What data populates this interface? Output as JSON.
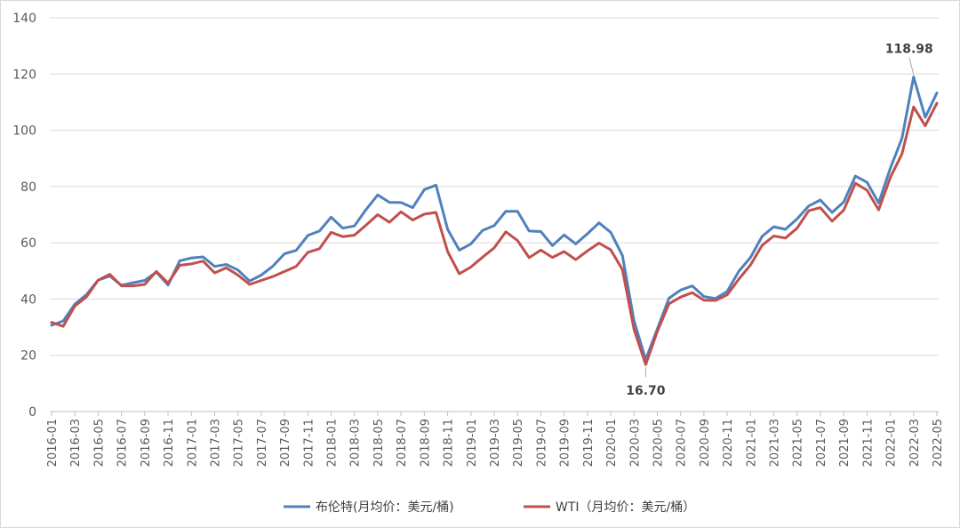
{
  "chart_data": {
    "type": "line",
    "ylim": [
      0,
      140
    ],
    "yticks": [
      0,
      20,
      40,
      60,
      80,
      100,
      120,
      140
    ],
    "grid": "horizontal",
    "legend_placement": "bottom-center",
    "x": [
      "2016-01",
      "2016-02",
      "2016-03",
      "2016-04",
      "2016-05",
      "2016-06",
      "2016-07",
      "2016-08",
      "2016-09",
      "2016-10",
      "2016-11",
      "2016-12",
      "2017-01",
      "2017-02",
      "2017-03",
      "2017-04",
      "2017-05",
      "2017-06",
      "2017-07",
      "2017-08",
      "2017-09",
      "2017-10",
      "2017-11",
      "2017-12",
      "2018-01",
      "2018-02",
      "2018-03",
      "2018-04",
      "2018-05",
      "2018-06",
      "2018-07",
      "2018-08",
      "2018-09",
      "2018-10",
      "2018-11",
      "2018-12",
      "2019-01",
      "2019-02",
      "2019-03",
      "2019-04",
      "2019-05",
      "2019-06",
      "2019-07",
      "2019-08",
      "2019-09",
      "2019-10",
      "2019-11",
      "2019-12",
      "2020-01",
      "2020-02",
      "2020-03",
      "2020-04",
      "2020-05",
      "2020-06",
      "2020-07",
      "2020-08",
      "2020-09",
      "2020-10",
      "2020-11",
      "2020-12",
      "2021-01",
      "2021-02",
      "2021-03",
      "2021-04",
      "2021-05",
      "2021-06",
      "2021-07",
      "2021-08",
      "2021-09",
      "2021-10",
      "2021-11",
      "2021-12",
      "2022-01",
      "2022-02",
      "2022-03",
      "2022-04",
      "2022-05"
    ],
    "xtick_labels": [
      "2016-01",
      "2016-03",
      "2016-05",
      "2016-07",
      "2016-09",
      "2016-11",
      "2017-01",
      "2017-03",
      "2017-05",
      "2017-07",
      "2017-09",
      "2017-11",
      "2018-01",
      "2018-03",
      "2018-05",
      "2018-07",
      "2018-09",
      "2018-11",
      "2019-01",
      "2019-03",
      "2019-05",
      "2019-07",
      "2019-09",
      "2019-11",
      "2020-01",
      "2020-03",
      "2020-05",
      "2020-07",
      "2020-09",
      "2020-11",
      "2021-01",
      "2021-03",
      "2021-05",
      "2021-07",
      "2021-09",
      "2021-11",
      "2022-01",
      "2022-03",
      "2022-05"
    ],
    "series": [
      {
        "name": "布伦特(月均价：美元/桶)",
        "color": "#4f81bd",
        "values": [
          30.7,
          32.2,
          38.2,
          41.6,
          46.7,
          48.2,
          44.9,
          45.8,
          46.6,
          49.6,
          45.0,
          53.6,
          54.6,
          55.0,
          51.6,
          52.3,
          50.3,
          46.4,
          48.5,
          51.7,
          56.1,
          57.3,
          62.6,
          64.2,
          69.1,
          65.2,
          66.0,
          71.8,
          77.0,
          74.4,
          74.3,
          72.5,
          78.9,
          80.5,
          64.8,
          57.4,
          59.6,
          64.4,
          66.1,
          71.2,
          71.2,
          64.2,
          64.0,
          59.0,
          62.8,
          59.6,
          63.2,
          67.1,
          63.7,
          55.5,
          32.2,
          18.5,
          29.4,
          40.3,
          43.2,
          44.7,
          40.9,
          40.2,
          42.7,
          49.9,
          54.8,
          62.3,
          65.7,
          64.8,
          68.5,
          73.1,
          75.2,
          70.8,
          74.5,
          83.7,
          81.5,
          74.2,
          86.5,
          97.1,
          118.98,
          104.6,
          113.3
        ]
      },
      {
        "name": "WTI（月均价：美元/桶）",
        "color": "#c0504d",
        "values": [
          31.7,
          30.3,
          37.5,
          40.8,
          46.7,
          48.8,
          44.7,
          44.7,
          45.2,
          49.8,
          45.7,
          52.0,
          52.5,
          53.5,
          49.3,
          51.1,
          48.5,
          45.2,
          46.6,
          48.0,
          49.8,
          51.6,
          56.6,
          57.9,
          63.7,
          62.2,
          62.7,
          66.3,
          70.0,
          67.3,
          71.0,
          68.1,
          70.2,
          70.8,
          56.9,
          49.0,
          51.4,
          54.9,
          58.2,
          63.9,
          60.8,
          54.7,
          57.4,
          54.8,
          56.9,
          54.0,
          57.1,
          59.9,
          57.5,
          50.5,
          29.2,
          16.7,
          28.5,
          38.3,
          40.7,
          42.3,
          39.6,
          39.5,
          41.5,
          47.1,
          52.1,
          59.1,
          62.4,
          61.7,
          65.2,
          71.4,
          72.5,
          67.7,
          71.6,
          81.2,
          78.7,
          71.7,
          83.2,
          91.6,
          108.3,
          101.6,
          109.6
        ]
      }
    ],
    "annotations": [
      {
        "text": "118.98",
        "series": 0,
        "x": "2022-03",
        "value": 118.98
      },
      {
        "text": "16.70",
        "series": 1,
        "x": "2020-04",
        "value": 16.7
      }
    ]
  }
}
